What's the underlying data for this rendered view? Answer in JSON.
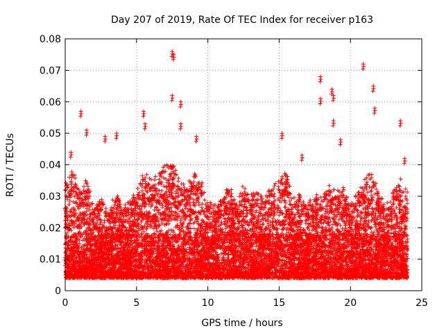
{
  "chart_data": {
    "type": "scatter",
    "title": "Day 207 of 2019, Rate Of TEC Index for receiver p163",
    "xlabel": "GPS time / hours",
    "ylabel": "ROTI / TECUs",
    "xlim": [
      0,
      25
    ],
    "ylim": [
      0,
      0.08
    ],
    "x_ticks": [
      "0",
      "5",
      "10",
      "15",
      "20",
      "25"
    ],
    "y_ticks": [
      "0",
      "0.01",
      "0.02",
      "0.03",
      "0.04",
      "0.05",
      "0.06",
      "0.07",
      "0.08"
    ],
    "grid": true,
    "marker": "+",
    "color": "#ff0000",
    "x_range_observed": [
      0,
      24
    ],
    "notable_points": [
      {
        "x": 0.4,
        "y": 0.044
      },
      {
        "x": 1.1,
        "y": 0.057
      },
      {
        "x": 1.5,
        "y": 0.051
      },
      {
        "x": 2.8,
        "y": 0.049
      },
      {
        "x": 3.6,
        "y": 0.05
      },
      {
        "x": 5.5,
        "y": 0.057
      },
      {
        "x": 5.6,
        "y": 0.053
      },
      {
        "x": 7.5,
        "y": 0.076
      },
      {
        "x": 7.6,
        "y": 0.075
      },
      {
        "x": 7.5,
        "y": 0.062
      },
      {
        "x": 8.1,
        "y": 0.06
      },
      {
        "x": 8.1,
        "y": 0.053
      },
      {
        "x": 9.2,
        "y": 0.049
      },
      {
        "x": 15.2,
        "y": 0.05
      },
      {
        "x": 16.6,
        "y": 0.043
      },
      {
        "x": 17.9,
        "y": 0.068
      },
      {
        "x": 17.9,
        "y": 0.061
      },
      {
        "x": 18.7,
        "y": 0.064
      },
      {
        "x": 18.8,
        "y": 0.062
      },
      {
        "x": 18.8,
        "y": 0.054
      },
      {
        "x": 19.3,
        "y": 0.048
      },
      {
        "x": 20.9,
        "y": 0.072
      },
      {
        "x": 21.6,
        "y": 0.065
      },
      {
        "x": 21.7,
        "y": 0.058
      },
      {
        "x": 23.5,
        "y": 0.054
      },
      {
        "x": 23.8,
        "y": 0.042
      }
    ],
    "hourly_envelope": {
      "hours": [
        0,
        0.5,
        1,
        1.5,
        2,
        2.5,
        3,
        3.5,
        4,
        4.5,
        5,
        5.5,
        6,
        6.5,
        7,
        7.5,
        8,
        8.5,
        9,
        9.5,
        10,
        10.5,
        11,
        11.5,
        12,
        12.5,
        13,
        13.5,
        14,
        14.5,
        15,
        15.5,
        16,
        16.5,
        17,
        17.5,
        18,
        18.5,
        19,
        19.5,
        20,
        20.5,
        21,
        21.5,
        22,
        22.5,
        23,
        23.5,
        24
      ],
      "typical_upper": [
        0.032,
        0.038,
        0.03,
        0.034,
        0.026,
        0.028,
        0.024,
        0.03,
        0.026,
        0.028,
        0.03,
        0.036,
        0.034,
        0.036,
        0.038,
        0.04,
        0.034,
        0.032,
        0.036,
        0.034,
        0.028,
        0.026,
        0.03,
        0.032,
        0.028,
        0.032,
        0.03,
        0.03,
        0.028,
        0.032,
        0.034,
        0.036,
        0.028,
        0.03,
        0.026,
        0.03,
        0.028,
        0.032,
        0.03,
        0.032,
        0.026,
        0.03,
        0.034,
        0.036,
        0.03,
        0.026,
        0.03,
        0.034,
        0.03
      ],
      "dense_lower": 0.004
    }
  }
}
